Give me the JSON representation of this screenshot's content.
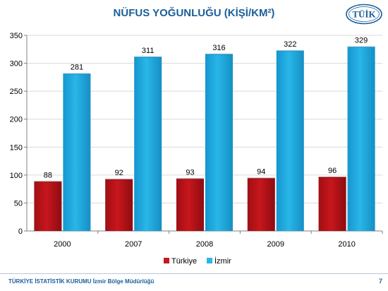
{
  "title": "NÜFUS YOĞUNLUĞU (KİŞİ/KM²)",
  "logo_text": "TÜİK",
  "footer_text": "TÜRKİYE İSTATİSTİK KURUMU İzmir Bölge Müdürlüğü",
  "page_number": "7",
  "colors": {
    "turkiye": "#c8161d",
    "izmir": "#29b6e8",
    "title": "#1b5e9a",
    "grid": "#d9d9d9"
  },
  "chart_data": {
    "type": "bar",
    "categories": [
      "2000",
      "2007",
      "2008",
      "2009",
      "2010"
    ],
    "series": [
      {
        "name": "Türkiye",
        "values": [
          88,
          92,
          93,
          94,
          96
        ]
      },
      {
        "name": "İzmir",
        "values": [
          281,
          311,
          316,
          322,
          329
        ]
      }
    ],
    "title": "NÜFUS YOĞUNLUĞU (KİŞİ/KM²)",
    "xlabel": "",
    "ylabel": "",
    "ylim": [
      0,
      350
    ],
    "yticks": [
      "0",
      "50",
      "100",
      "150",
      "200",
      "250",
      "300",
      "350"
    ],
    "grid": true,
    "legend": "bottom"
  }
}
